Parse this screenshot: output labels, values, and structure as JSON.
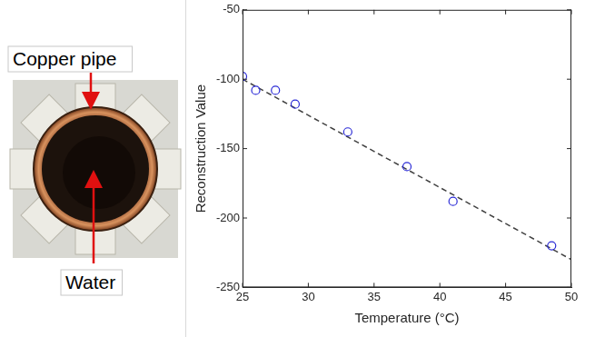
{
  "photo": {
    "labels": [
      "Copper pipe",
      "Water"
    ]
  },
  "chart_data": {
    "type": "scatter",
    "x_label": "Temperature (°C)",
    "y_label": "Reconstruction Value",
    "xlim": [
      25,
      50
    ],
    "xticks": [
      25,
      30,
      35,
      40,
      45,
      50
    ],
    "ylim": [
      -250,
      -50
    ],
    "yticks": [
      -250,
      -200,
      -150,
      -100,
      -50
    ],
    "grid": false,
    "series": [
      {
        "type": "scatter",
        "marker": "circle",
        "color": "#2b2bd6",
        "x": [
          25,
          26,
          27.5,
          29,
          33,
          37.5,
          41,
          48.5
        ],
        "values": [
          -98,
          -108,
          -108,
          -118,
          -138,
          -163,
          -188,
          -220
        ]
      },
      {
        "type": "line",
        "line_style": "dashed",
        "color": "#404040",
        "x": [
          25,
          50
        ],
        "values": [
          -100,
          -230
        ]
      }
    ]
  }
}
